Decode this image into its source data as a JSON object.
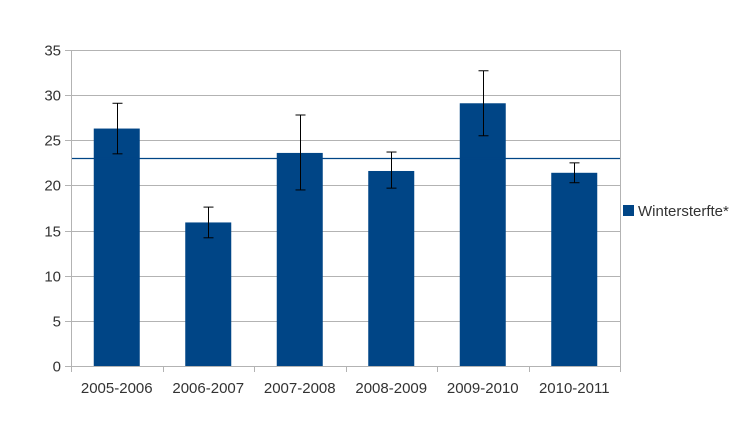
{
  "chart_data": {
    "type": "bar",
    "categories": [
      "2005-2006",
      "2006-2007",
      "2007-2008",
      "2008-2009",
      "2009-2010",
      "2010-2011"
    ],
    "series": [
      {
        "name": "Wintersterfte*",
        "values": [
          26.3,
          15.9,
          23.6,
          21.6,
          29.1,
          21.4
        ],
        "error_low": [
          23.5,
          14.2,
          19.5,
          19.7,
          25.5,
          20.3
        ],
        "error_high": [
          29.1,
          17.6,
          27.8,
          23.7,
          32.7,
          22.5
        ]
      }
    ],
    "reference_line": 23.0,
    "ylim": [
      0,
      35
    ],
    "yticks": [
      0,
      5,
      10,
      15,
      20,
      25,
      30,
      35
    ],
    "ytick_labels": [
      "0",
      "5",
      "10",
      "15",
      "20",
      "25",
      "30",
      "35"
    ],
    "grid": true,
    "legend_position": "right",
    "colors": {
      "bar": "#004586",
      "reference_line": "#004586",
      "grid": "#b3b3b3",
      "axis": "#b3b3b3",
      "error_bar": "#000000"
    }
  }
}
